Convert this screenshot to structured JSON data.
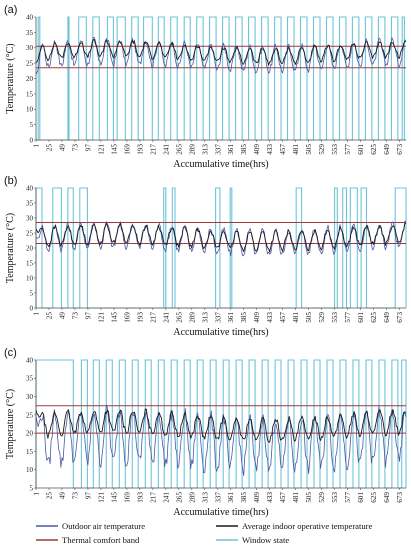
{
  "colors": {
    "outdoor": "#4a58a6",
    "indoor": "#1a1a1a",
    "comfort": "#a2393b",
    "window": "#6fc3d8",
    "axis": "#555555"
  },
  "legend": {
    "outdoor": "Outdoor air temperature",
    "indoor": "Average indoor operative temperature",
    "comfort": "Thermal comfort band",
    "window": "Window state"
  },
  "chart_data": [
    {
      "panel_label": "(a)",
      "type": "line",
      "xlabel": "Accumulative time(hrs)",
      "ylabel": "Temperature (°C)",
      "xlim": [
        1,
        685
      ],
      "ylim": [
        0,
        40
      ],
      "ytick_labels": [
        "0",
        "5",
        "10",
        "15",
        "20",
        "25",
        "30",
        "35",
        "40"
      ],
      "xtick_labels": [
        "1",
        "25",
        "49",
        "73",
        "97",
        "121",
        "145",
        "169",
        "193",
        "217",
        "241",
        "265",
        "289",
        "313",
        "337",
        "361",
        "385",
        "409",
        "433",
        "457",
        "481",
        "505",
        "529",
        "553",
        "577",
        "601",
        "625",
        "649",
        "673"
      ],
      "comfort_band": [
        23.5,
        30.5
      ],
      "window_open_intervals": [
        [
          5,
          8
        ],
        [
          60,
          62
        ],
        [
          80,
          94
        ],
        [
          106,
          118
        ],
        [
          133,
          144
        ],
        [
          151,
          166
        ],
        [
          178,
          190
        ],
        [
          200,
          216
        ],
        [
          227,
          238
        ],
        [
          250,
          262
        ],
        [
          275,
          286
        ],
        [
          298,
          310
        ],
        [
          322,
          334
        ],
        [
          346,
          358
        ],
        [
          370,
          382
        ],
        [
          394,
          406
        ],
        [
          418,
          430
        ],
        [
          442,
          454
        ],
        [
          466,
          478
        ],
        [
          490,
          502
        ],
        [
          514,
          526
        ],
        [
          538,
          550
        ],
        [
          562,
          574
        ],
        [
          586,
          598
        ],
        [
          610,
          622
        ],
        [
          634,
          646
        ],
        [
          658,
          670
        ],
        [
          678,
          682
        ]
      ],
      "series": [
        {
          "name": "Outdoor air temperature",
          "series_key": "outdoor",
          "base": 27.5,
          "amp": 4,
          "start": 21
        },
        {
          "name": "Average indoor operative temperature",
          "series_key": "indoor",
          "base": 28.5,
          "amp": 2.5,
          "start": 25
        }
      ]
    },
    {
      "panel_label": "(b)",
      "type": "line",
      "xlabel": "Accumulative time(hrs)",
      "ylabel": "Temperature (°C)",
      "xlim": [
        1,
        685
      ],
      "ylim": [
        0,
        40
      ],
      "ytick_labels": [
        "0",
        "5",
        "10",
        "15",
        "20",
        "25",
        "30",
        "35",
        "40"
      ],
      "xtick_labels": [
        "1",
        "25",
        "49",
        "73",
        "97",
        "121",
        "145",
        "169",
        "193",
        "217",
        "241",
        "265",
        "289",
        "313",
        "337",
        "361",
        "385",
        "409",
        "433",
        "457",
        "481",
        "505",
        "529",
        "553",
        "577",
        "601",
        "625",
        "649",
        "673"
      ],
      "comfort_band": [
        21.5,
        28.5
      ],
      "window_open_intervals": [
        [
          1,
          12
        ],
        [
          32,
          48
        ],
        [
          60,
          70
        ],
        [
          82,
          96
        ],
        [
          237,
          241
        ],
        [
          253,
          258
        ],
        [
          333,
          341
        ],
        [
          360,
          363
        ],
        [
          482,
          492
        ],
        [
          553,
          558
        ],
        [
          568,
          575
        ],
        [
          582,
          595
        ],
        [
          602,
          612
        ],
        [
          665,
          685
        ]
      ],
      "series": [
        {
          "name": "Outdoor air temperature",
          "series_key": "outdoor",
          "base": 23,
          "amp": 4,
          "start": 24
        },
        {
          "name": "Average indoor operative temperature",
          "series_key": "indoor",
          "base": 23.5,
          "amp": 3,
          "start": 27
        }
      ]
    },
    {
      "panel_label": "(c)",
      "type": "line",
      "xlabel": "Accumulative time(hrs)",
      "ylabel": "Temperature (°C)",
      "xlim": [
        1,
        685
      ],
      "ylim": [
        5,
        40
      ],
      "ytick_labels": [
        "5",
        "10",
        "15",
        "20",
        "25",
        "30",
        "35",
        "40"
      ],
      "xtick_labels": [
        "1",
        "25",
        "49",
        "73",
        "97",
        "121",
        "145",
        "169",
        "193",
        "217",
        "241",
        "265",
        "289",
        "313",
        "337",
        "361",
        "385",
        "409",
        "433",
        "457",
        "481",
        "505",
        "529",
        "553",
        "577",
        "601",
        "625",
        "649",
        "673"
      ],
      "comfort_band": [
        20,
        27.5
      ],
      "window_open_intervals": [
        [
          1,
          70
        ],
        [
          85,
          96
        ],
        [
          107,
          118
        ],
        [
          131,
          142
        ],
        [
          155,
          166
        ],
        [
          179,
          190
        ],
        [
          203,
          214
        ],
        [
          227,
          238
        ],
        [
          251,
          262
        ],
        [
          275,
          286
        ],
        [
          299,
          310
        ],
        [
          323,
          334
        ],
        [
          347,
          358
        ],
        [
          371,
          382
        ],
        [
          395,
          406
        ],
        [
          419,
          430
        ],
        [
          443,
          454
        ],
        [
          467,
          478
        ],
        [
          491,
          502
        ],
        [
          515,
          526
        ],
        [
          539,
          550
        ],
        [
          563,
          574
        ],
        [
          587,
          598
        ],
        [
          611,
          622
        ],
        [
          635,
          646
        ],
        [
          659,
          670
        ],
        [
          677,
          685
        ]
      ],
      "series": [
        {
          "name": "Outdoor air temperature",
          "series_key": "outdoor",
          "base": 18,
          "amp": 7,
          "start": 26
        },
        {
          "name": "Average indoor operative temperature",
          "series_key": "indoor",
          "base": 22,
          "amp": 3,
          "start": 27
        }
      ]
    }
  ]
}
